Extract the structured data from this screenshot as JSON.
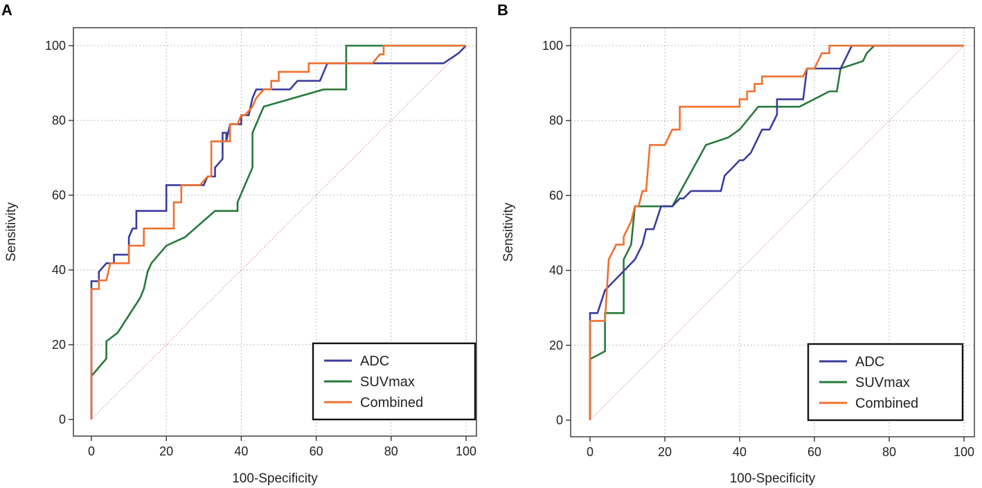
{
  "chart_data": [
    {
      "panel": "A",
      "type": "line",
      "xlabel": "100-Specificity",
      "ylabel": "Sensitivity",
      "xlim": [
        0,
        100
      ],
      "ylim": [
        0,
        100
      ],
      "xticks": [
        0,
        20,
        40,
        60,
        80,
        100
      ],
      "yticks": [
        0,
        20,
        40,
        60,
        80,
        100
      ],
      "grid": true,
      "legend_position": "bottom-right",
      "reference_line": [
        [
          0,
          0
        ],
        [
          100,
          100
        ]
      ],
      "series": [
        {
          "name": "ADC",
          "color": "#3a3c9c",
          "points": [
            [
              0,
              0
            ],
            [
              0,
              37
            ],
            [
              2,
              37
            ],
            [
              2,
              39.5
            ],
            [
              4,
              41.8
            ],
            [
              6,
              41.8
            ],
            [
              6,
              44.1
            ],
            [
              10,
              44.1
            ],
            [
              10,
              48.8
            ],
            [
              11,
              51.1
            ],
            [
              12,
              51.1
            ],
            [
              12,
              55.8
            ],
            [
              20,
              55.8
            ],
            [
              20,
              62.7
            ],
            [
              30,
              62.7
            ],
            [
              31,
              65
            ],
            [
              33,
              65
            ],
            [
              33,
              67.4
            ],
            [
              35,
              69.7
            ],
            [
              35,
              76.7
            ],
            [
              36,
              76.7
            ],
            [
              36,
              74.4
            ],
            [
              37,
              79
            ],
            [
              40,
              79
            ],
            [
              40,
              81.4
            ],
            [
              42,
              81.4
            ],
            [
              43,
              86
            ],
            [
              44,
              88.3
            ],
            [
              53,
              88.3
            ],
            [
              55,
              90.6
            ],
            [
              61,
              90.6
            ],
            [
              63,
              95.3
            ],
            [
              94,
              95.3
            ],
            [
              98,
              98
            ],
            [
              100,
              100
            ]
          ]
        },
        {
          "name": "SUVmax",
          "color": "#26793a",
          "points": [
            [
              0,
              0
            ],
            [
              0,
              11.6
            ],
            [
              4,
              16.3
            ],
            [
              4,
              20.9
            ],
            [
              7,
              23.2
            ],
            [
              13,
              32.5
            ],
            [
              14,
              34.9
            ],
            [
              15,
              39.5
            ],
            [
              16,
              41.8
            ],
            [
              20,
              46.5
            ],
            [
              25,
              48.8
            ],
            [
              33,
              55.8
            ],
            [
              39,
              55.8
            ],
            [
              39,
              58.1
            ],
            [
              42,
              65.1
            ],
            [
              43,
              67.4
            ],
            [
              43,
              76.7
            ],
            [
              45,
              81.4
            ],
            [
              46,
              83.7
            ],
            [
              62,
              88.3
            ],
            [
              68,
              88.3
            ],
            [
              68,
              100
            ],
            [
              78,
              100
            ],
            [
              100,
              100
            ]
          ]
        },
        {
          "name": "Combined",
          "color": "#f0702e",
          "points": [
            [
              0,
              0
            ],
            [
              0,
              34.9
            ],
            [
              2,
              34.9
            ],
            [
              2,
              37.2
            ],
            [
              4,
              37.2
            ],
            [
              5,
              41.8
            ],
            [
              9,
              41.8
            ],
            [
              10,
              41.8
            ],
            [
              10,
              46.5
            ],
            [
              14,
              46.5
            ],
            [
              14,
              51.1
            ],
            [
              22,
              51.1
            ],
            [
              22,
              58.1
            ],
            [
              24,
              58.1
            ],
            [
              24,
              62.7
            ],
            [
              29,
              62.7
            ],
            [
              31,
              65
            ],
            [
              32,
              65
            ],
            [
              32,
              74.4
            ],
            [
              37,
              74.4
            ],
            [
              37,
              79
            ],
            [
              39,
              79
            ],
            [
              40,
              81.4
            ],
            [
              41,
              81.4
            ],
            [
              43,
              83.7
            ],
            [
              44,
              86
            ],
            [
              46,
              88.3
            ],
            [
              48,
              88.3
            ],
            [
              48,
              90.6
            ],
            [
              50,
              90.6
            ],
            [
              50,
              93
            ],
            [
              58,
              93
            ],
            [
              58,
              95.3
            ],
            [
              75,
              95.3
            ],
            [
              77,
              97.7
            ],
            [
              78,
              97.7
            ],
            [
              78,
              100
            ],
            [
              100,
              100
            ]
          ]
        }
      ]
    },
    {
      "panel": "B",
      "type": "line",
      "xlabel": "100-Specificity",
      "ylabel": "Sensitivity",
      "xlim": [
        0,
        100
      ],
      "ylim": [
        0,
        100
      ],
      "xticks": [
        0,
        20,
        40,
        60,
        80,
        100
      ],
      "yticks": [
        0,
        20,
        40,
        60,
        80,
        100
      ],
      "grid": true,
      "legend_position": "bottom-right",
      "reference_line": [
        [
          0,
          0
        ],
        [
          100,
          100
        ]
      ],
      "series": [
        {
          "name": "ADC",
          "color": "#3a3c9c",
          "points": [
            [
              0,
              0
            ],
            [
              0,
              28.6
            ],
            [
              2,
              28.6
            ],
            [
              4,
              34.7
            ],
            [
              8,
              38.8
            ],
            [
              12,
              42.9
            ],
            [
              14,
              46.9
            ],
            [
              15,
              51
            ],
            [
              17,
              51
            ],
            [
              19,
              57.1
            ],
            [
              22,
              57.1
            ],
            [
              24,
              59.2
            ],
            [
              25,
              59.2
            ],
            [
              27,
              61.2
            ],
            [
              35,
              61.2
            ],
            [
              36,
              65.3
            ],
            [
              38,
              67.3
            ],
            [
              40,
              69.4
            ],
            [
              41,
              69.4
            ],
            [
              43,
              71.4
            ],
            [
              46,
              77.6
            ],
            [
              48,
              77.6
            ],
            [
              50,
              81.6
            ],
            [
              50,
              85.7
            ],
            [
              57,
              85.7
            ],
            [
              58,
              93.9
            ],
            [
              67,
              93.9
            ],
            [
              68,
              95.9
            ],
            [
              70,
              100
            ],
            [
              100,
              100
            ]
          ]
        },
        {
          "name": "SUVmax",
          "color": "#26793a",
          "points": [
            [
              0,
              0
            ],
            [
              0,
              16.3
            ],
            [
              4,
              18.4
            ],
            [
              4,
              28.6
            ],
            [
              9,
              28.6
            ],
            [
              9,
              42.9
            ],
            [
              11,
              46.9
            ],
            [
              12,
              57.1
            ],
            [
              22,
              57.1
            ],
            [
              31,
              73.5
            ],
            [
              37,
              75.5
            ],
            [
              40,
              77.6
            ],
            [
              45,
              83.7
            ],
            [
              56,
              83.7
            ],
            [
              64,
              87.8
            ],
            [
              66,
              87.8
            ],
            [
              67,
              93.9
            ],
            [
              73,
              95.9
            ],
            [
              74,
              98
            ],
            [
              76,
              100
            ],
            [
              100,
              100
            ]
          ]
        },
        {
          "name": "Combined",
          "color": "#f0702e",
          "points": [
            [
              0,
              0
            ],
            [
              0,
              26.5
            ],
            [
              4,
              26.5
            ],
            [
              5,
              42.9
            ],
            [
              7,
              46.9
            ],
            [
              9,
              46.9
            ],
            [
              9,
              49
            ],
            [
              11,
              53.1
            ],
            [
              12,
              57.1
            ],
            [
              13,
              57.1
            ],
            [
              14,
              61.2
            ],
            [
              15,
              61.2
            ],
            [
              16,
              73.5
            ],
            [
              20,
              73.5
            ],
            [
              22,
              77.6
            ],
            [
              24,
              77.6
            ],
            [
              24,
              83.7
            ],
            [
              40,
              83.7
            ],
            [
              40,
              85.7
            ],
            [
              42,
              85.7
            ],
            [
              42,
              87.8
            ],
            [
              44,
              87.8
            ],
            [
              44,
              89.8
            ],
            [
              46,
              89.8
            ],
            [
              46,
              91.8
            ],
            [
              57,
              91.8
            ],
            [
              58,
              93.9
            ],
            [
              60,
              93.9
            ],
            [
              62,
              98
            ],
            [
              64,
              98
            ],
            [
              64,
              100
            ],
            [
              100,
              100
            ]
          ]
        }
      ]
    }
  ],
  "panels": [
    {
      "letter": "A"
    },
    {
      "letter": "B"
    }
  ]
}
